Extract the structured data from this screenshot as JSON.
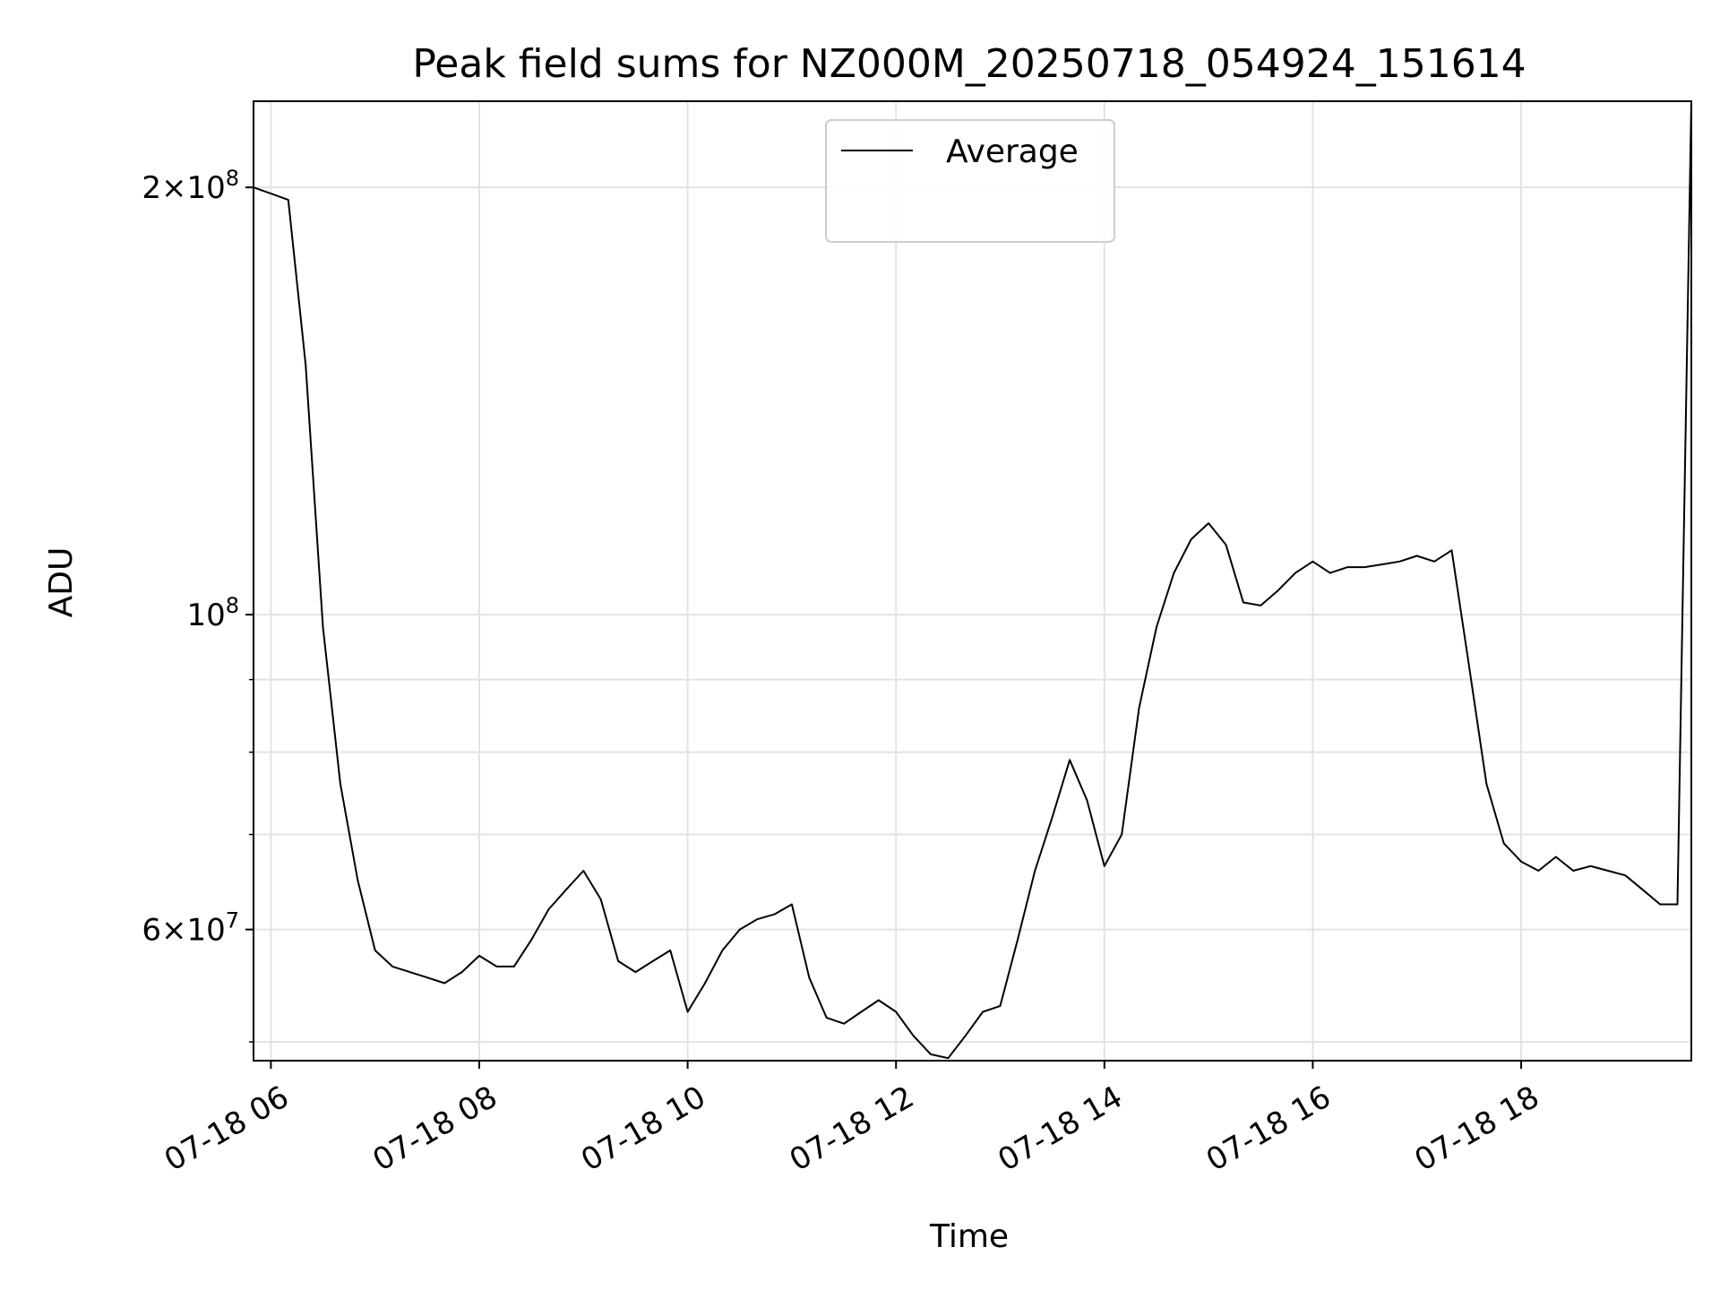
{
  "chart_data": {
    "type": "line",
    "title": "Peak field sums for NZ000M_20250718_054924_151614",
    "xlabel": "Time",
    "ylabel": "ADU",
    "yscale": "log",
    "ylim": [
      48500000,
      230000000
    ],
    "xlim": [
      "2025-07-18 05:50",
      "2025-07-18 19:38"
    ],
    "grid": true,
    "legend_position": "top-center",
    "x_ticks": [
      {
        "t": "2025-07-18 06:00",
        "label": "07-18 06"
      },
      {
        "t": "2025-07-18 08:00",
        "label": "07-18 08"
      },
      {
        "t": "2025-07-18 10:00",
        "label": "07-18 10"
      },
      {
        "t": "2025-07-18 12:00",
        "label": "07-18 12"
      },
      {
        "t": "2025-07-18 14:00",
        "label": "07-18 14"
      },
      {
        "t": "2025-07-18 16:00",
        "label": "07-18 16"
      },
      {
        "t": "2025-07-18 18:00",
        "label": "07-18 18"
      }
    ],
    "y_ticks": [
      {
        "value": 60000000,
        "base": "6",
        "exp": "7"
      },
      {
        "value": 100000000,
        "base": "",
        "exp": "8"
      },
      {
        "value": 200000000,
        "base": "2",
        "exp": "8"
      }
    ],
    "y_minor_ticks": [
      50000000,
      70000000,
      80000000,
      90000000
    ],
    "series": [
      {
        "name": "Average",
        "color": "#000000",
        "points": [
          [
            "2025-07-18 05:50",
            200000000
          ],
          [
            "2025-07-18 06:00",
            198000000
          ],
          [
            "2025-07-18 06:10",
            196000000
          ],
          [
            "2025-07-18 06:20",
            150000000
          ],
          [
            "2025-07-18 06:30",
            98000000
          ],
          [
            "2025-07-18 06:40",
            76000000
          ],
          [
            "2025-07-18 06:50",
            65000000
          ],
          [
            "2025-07-18 07:00",
            58000000
          ],
          [
            "2025-07-18 07:10",
            56500000
          ],
          [
            "2025-07-18 07:20",
            56000000
          ],
          [
            "2025-07-18 07:30",
            55500000
          ],
          [
            "2025-07-18 07:40",
            55000000
          ],
          [
            "2025-07-18 07:50",
            56000000
          ],
          [
            "2025-07-18 08:00",
            57500000
          ],
          [
            "2025-07-18 08:10",
            56500000
          ],
          [
            "2025-07-18 08:20",
            56500000
          ],
          [
            "2025-07-18 08:30",
            59000000
          ],
          [
            "2025-07-18 08:40",
            62000000
          ],
          [
            "2025-07-18 08:50",
            64000000
          ],
          [
            "2025-07-18 09:00",
            66000000
          ],
          [
            "2025-07-18 09:10",
            63000000
          ],
          [
            "2025-07-18 09:20",
            57000000
          ],
          [
            "2025-07-18 09:30",
            56000000
          ],
          [
            "2025-07-18 09:40",
            57000000
          ],
          [
            "2025-07-18 09:50",
            58000000
          ],
          [
            "2025-07-18 10:00",
            52500000
          ],
          [
            "2025-07-18 10:10",
            55000000
          ],
          [
            "2025-07-18 10:20",
            58000000
          ],
          [
            "2025-07-18 10:30",
            60000000
          ],
          [
            "2025-07-18 10:40",
            61000000
          ],
          [
            "2025-07-18 10:50",
            61500000
          ],
          [
            "2025-07-18 11:00",
            62500000
          ],
          [
            "2025-07-18 11:10",
            55500000
          ],
          [
            "2025-07-18 11:20",
            52000000
          ],
          [
            "2025-07-18 11:30",
            51500000
          ],
          [
            "2025-07-18 11:40",
            52500000
          ],
          [
            "2025-07-18 11:50",
            53500000
          ],
          [
            "2025-07-18 12:00",
            52500000
          ],
          [
            "2025-07-18 12:10",
            50500000
          ],
          [
            "2025-07-18 12:20",
            49000000
          ],
          [
            "2025-07-18 12:30",
            48700000
          ],
          [
            "2025-07-18 12:40",
            50500000
          ],
          [
            "2025-07-18 12:50",
            52500000
          ],
          [
            "2025-07-18 13:00",
            53000000
          ],
          [
            "2025-07-18 13:10",
            59000000
          ],
          [
            "2025-07-18 13:20",
            66000000
          ],
          [
            "2025-07-18 13:30",
            72000000
          ],
          [
            "2025-07-18 13:40",
            79000000
          ],
          [
            "2025-07-18 13:50",
            74000000
          ],
          [
            "2025-07-18 14:00",
            66500000
          ],
          [
            "2025-07-18 14:10",
            70000000
          ],
          [
            "2025-07-18 14:20",
            86000000
          ],
          [
            "2025-07-18 14:30",
            98000000
          ],
          [
            "2025-07-18 14:40",
            107000000
          ],
          [
            "2025-07-18 14:50",
            113000000
          ],
          [
            "2025-07-18 15:00",
            116000000
          ],
          [
            "2025-07-18 15:10",
            112000000
          ],
          [
            "2025-07-18 15:20",
            102000000
          ],
          [
            "2025-07-18 15:30",
            101500000
          ],
          [
            "2025-07-18 15:40",
            104000000
          ],
          [
            "2025-07-18 15:50",
            107000000
          ],
          [
            "2025-07-18 16:00",
            109000000
          ],
          [
            "2025-07-18 16:10",
            107000000
          ],
          [
            "2025-07-18 16:20",
            108000000
          ],
          [
            "2025-07-18 16:30",
            108000000
          ],
          [
            "2025-07-18 16:40",
            108500000
          ],
          [
            "2025-07-18 16:50",
            109000000
          ],
          [
            "2025-07-18 17:00",
            110000000
          ],
          [
            "2025-07-18 17:10",
            109000000
          ],
          [
            "2025-07-18 17:20",
            111000000
          ],
          [
            "2025-07-18 17:30",
            92000000
          ],
          [
            "2025-07-18 17:40",
            76000000
          ],
          [
            "2025-07-18 17:50",
            69000000
          ],
          [
            "2025-07-18 18:00",
            67000000
          ],
          [
            "2025-07-18 18:10",
            66000000
          ],
          [
            "2025-07-18 18:20",
            67500000
          ],
          [
            "2025-07-18 18:30",
            66000000
          ],
          [
            "2025-07-18 18:40",
            66500000
          ],
          [
            "2025-07-18 18:50",
            66000000
          ],
          [
            "2025-07-18 19:00",
            65500000
          ],
          [
            "2025-07-18 19:10",
            64000000
          ],
          [
            "2025-07-18 19:20",
            62500000
          ],
          [
            "2025-07-18 19:30",
            62500000
          ],
          [
            "2025-07-18 19:38",
            230000000
          ]
        ]
      }
    ]
  }
}
